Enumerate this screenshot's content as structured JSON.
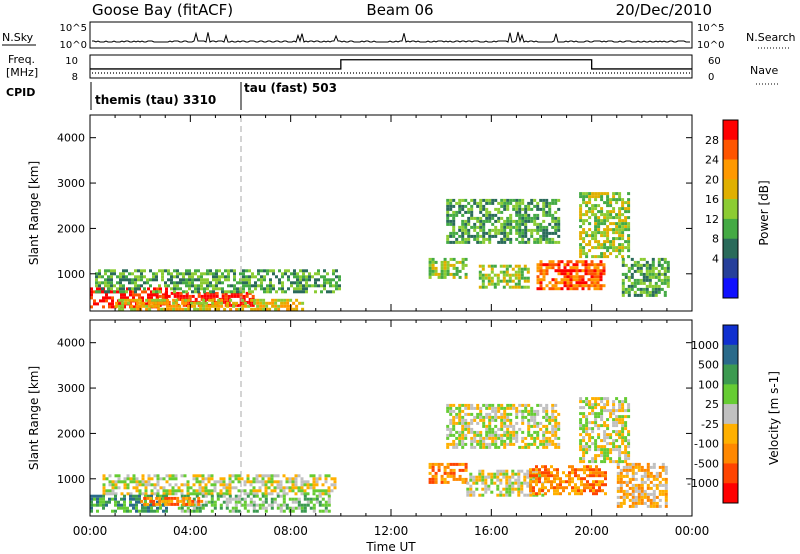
{
  "header": {
    "station": "Goose Bay (fitACF)",
    "beam": "Beam 06",
    "date": "20/Dec/2010"
  },
  "nsky_panel": {
    "left_label": "N.Sky",
    "right_label": "N.Search",
    "left_ticks": [
      "10^5",
      "10^0"
    ],
    "right_ticks": [
      "10^5",
      "10^0"
    ]
  },
  "freq_panel": {
    "left_label_line1": "Freq.",
    "left_label_line2": "[MHz]",
    "right_label": "Nave",
    "left_ticks": [
      "10",
      "8"
    ],
    "right_ticks": [
      "60",
      "0"
    ],
    "nave_steps": [
      {
        "start_h": 0,
        "end_h": 10,
        "value": 22
      },
      {
        "start_h": 10,
        "end_h": 20,
        "value": 47
      },
      {
        "start_h": 20,
        "end_h": 24,
        "value": 22
      }
    ]
  },
  "cpid": {
    "label": "CPID",
    "modes": [
      {
        "name": "themis (tau) 3310",
        "start_h": 0
      },
      {
        "name": "tau (fast) 503",
        "start_h": 6
      }
    ]
  },
  "chart_data": [
    {
      "type": "heatmap",
      "quantity": "Power",
      "ylabel": "Slant Range [km]",
      "ylim": [
        180,
        4500
      ],
      "yticks": [
        1000,
        2000,
        3000,
        4000
      ],
      "xlim_hours": [
        0,
        24
      ],
      "colorbar_label": "Power [dB]",
      "colorbar_ticks": [
        "28",
        "24",
        "20",
        "16",
        "12",
        "8",
        "4"
      ],
      "colorbar_colors": [
        "#ff0000",
        "#ff5500",
        "#ff9900",
        "#e0b000",
        "#8ccc33",
        "#44aa44",
        "#2a6a5a",
        "#263f9a",
        "#1010ff"
      ],
      "echo_regions": [
        {
          "h0": 0.0,
          "h1": 3.0,
          "r0": 300,
          "r1": 700,
          "level": 8
        },
        {
          "h0": 2.5,
          "h1": 6.5,
          "r0": 320,
          "r1": 600,
          "level": 8
        },
        {
          "h0": 0.2,
          "h1": 10.0,
          "r0": 600,
          "r1": 1100,
          "level": 3
        },
        {
          "h0": 1.0,
          "h1": 8.5,
          "r0": 250,
          "r1": 450,
          "level": 5
        },
        {
          "h0": 13.5,
          "h1": 15.0,
          "r0": 900,
          "r1": 1350,
          "level": 4
        },
        {
          "h0": 14.2,
          "h1": 18.7,
          "r0": 1700,
          "r1": 2650,
          "level": 3
        },
        {
          "h0": 15.5,
          "h1": 17.5,
          "r0": 700,
          "r1": 1200,
          "level": 4
        },
        {
          "h0": 17.8,
          "h1": 20.5,
          "r0": 700,
          "r1": 1300,
          "level": 7
        },
        {
          "h0": 19.5,
          "h1": 21.5,
          "r0": 1400,
          "r1": 2800,
          "level": 4
        },
        {
          "h0": 21.2,
          "h1": 23.0,
          "r0": 500,
          "r1": 1350,
          "level": 3
        }
      ]
    },
    {
      "type": "heatmap",
      "quantity": "Velocity",
      "ylabel": "Slant Range [km]",
      "ylim": [
        180,
        4500
      ],
      "yticks": [
        1000,
        2000,
        3000,
        4000
      ],
      "xlim_hours": [
        0,
        24
      ],
      "xticks": [
        "00:00",
        "04:00",
        "08:00",
        "12:00",
        "16:00",
        "20:00",
        "00:00"
      ],
      "xlabel": "Time UT",
      "colorbar_label": "Velocity [m s-1]",
      "colorbar_ticks": [
        "1000",
        "500",
        "100",
        "25",
        "-25",
        "-100",
        "-500",
        "-1000"
      ],
      "colorbar_colors": [
        "#1030d0",
        "#2a6a8a",
        "#3c9a50",
        "#66cc33",
        "#c0c0c0",
        "#ffb000",
        "#ff8800",
        "#ff4400",
        "#ff0000"
      ],
      "echo_regions": [
        {
          "h0": 0.5,
          "h1": 9.8,
          "r0": 650,
          "r1": 1100,
          "level": 4
        },
        {
          "h0": 0.0,
          "h1": 3.0,
          "r0": 300,
          "r1": 650,
          "level": 6
        },
        {
          "h0": 3.5,
          "h1": 9.5,
          "r0": 300,
          "r1": 650,
          "level": 5
        },
        {
          "h0": 2.0,
          "h1": 4.5,
          "r0": 450,
          "r1": 600,
          "level": 2
        },
        {
          "h0": 14.2,
          "h1": 18.7,
          "r0": 1700,
          "r1": 2650,
          "level": 4
        },
        {
          "h0": 13.5,
          "h1": 15.0,
          "r0": 900,
          "r1": 1350,
          "level": 2
        },
        {
          "h0": 15.0,
          "h1": 18.0,
          "r0": 650,
          "r1": 1200,
          "level": 4
        },
        {
          "h0": 17.5,
          "h1": 20.5,
          "r0": 700,
          "r1": 1300,
          "level": 2
        },
        {
          "h0": 19.5,
          "h1": 21.5,
          "r0": 1400,
          "r1": 2800,
          "level": 4
        },
        {
          "h0": 21.0,
          "h1": 23.0,
          "r0": 400,
          "r1": 1350,
          "level": 3
        }
      ]
    }
  ]
}
